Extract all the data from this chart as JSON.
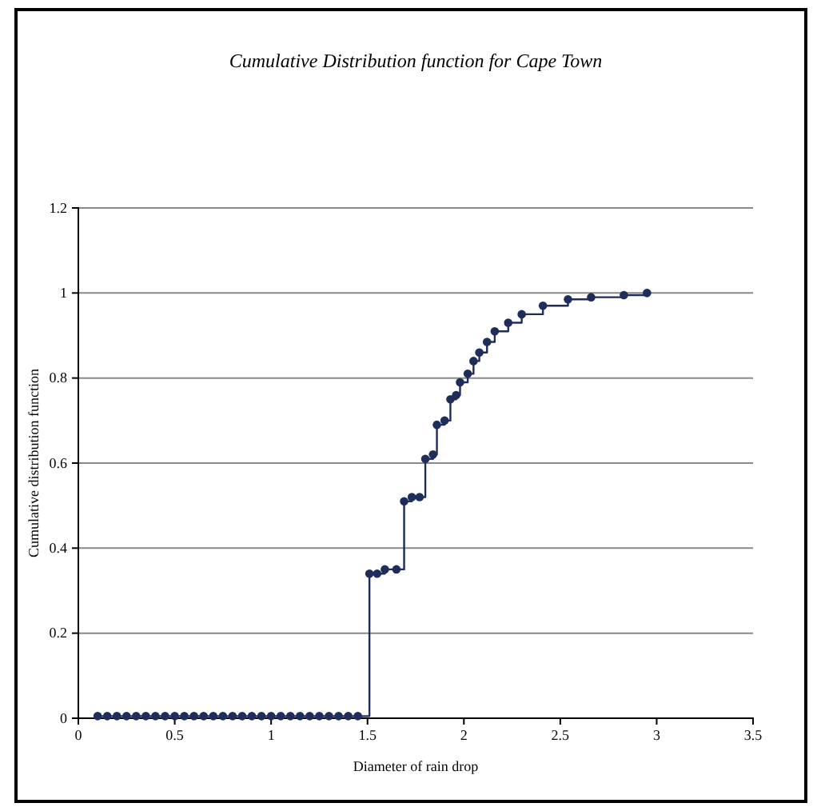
{
  "chart_data": {
    "type": "step",
    "title": "Cumulative Distribution function for Cape Town",
    "xlabel": "Diameter of rain drop",
    "ylabel": "Cumulative distribution function",
    "xlim": [
      0,
      3.5
    ],
    "xticks": [
      0,
      0.5,
      1,
      1.5,
      2,
      2.5,
      3,
      3.5
    ],
    "ylim": [
      0,
      1.2
    ],
    "yticks": [
      0,
      0.2,
      0.4,
      0.6,
      0.8,
      1,
      1.2
    ],
    "grid": "y",
    "marker": "circle",
    "line_style": "solid",
    "series": [
      {
        "color": "#1f2d5a",
        "x": [
          0.1,
          0.15,
          0.2,
          0.25,
          0.3,
          0.35,
          0.4,
          0.45,
          0.5,
          0.55,
          0.6,
          0.65,
          0.7,
          0.75,
          0.8,
          0.85,
          0.9,
          0.95,
          1,
          1.05,
          1.1,
          1.15,
          1.2,
          1.25,
          1.3,
          1.35,
          1.4,
          1.45,
          1.51,
          1.55,
          1.59,
          1.65,
          1.69,
          1.73,
          1.77,
          1.8,
          1.84,
          1.86,
          1.9,
          1.93,
          1.96,
          1.98,
          2.02,
          2.05,
          2.08,
          2.12,
          2.16,
          2.23,
          2.3,
          2.41,
          2.54,
          2.66,
          2.83,
          2.95
        ],
        "values": [
          0.005,
          0.005,
          0.005,
          0.005,
          0.005,
          0.005,
          0.005,
          0.005,
          0.005,
          0.005,
          0.005,
          0.005,
          0.005,
          0.005,
          0.005,
          0.005,
          0.005,
          0.005,
          0.005,
          0.005,
          0.005,
          0.005,
          0.005,
          0.005,
          0.005,
          0.005,
          0.005,
          0.005,
          0.34,
          0.34,
          0.35,
          0.35,
          0.51,
          0.52,
          0.52,
          0.61,
          0.62,
          0.69,
          0.7,
          0.75,
          0.76,
          0.79,
          0.81,
          0.84,
          0.86,
          0.885,
          0.91,
          0.93,
          0.95,
          0.97,
          0.985,
          0.99,
          0.995,
          1.0
        ]
      }
    ]
  }
}
